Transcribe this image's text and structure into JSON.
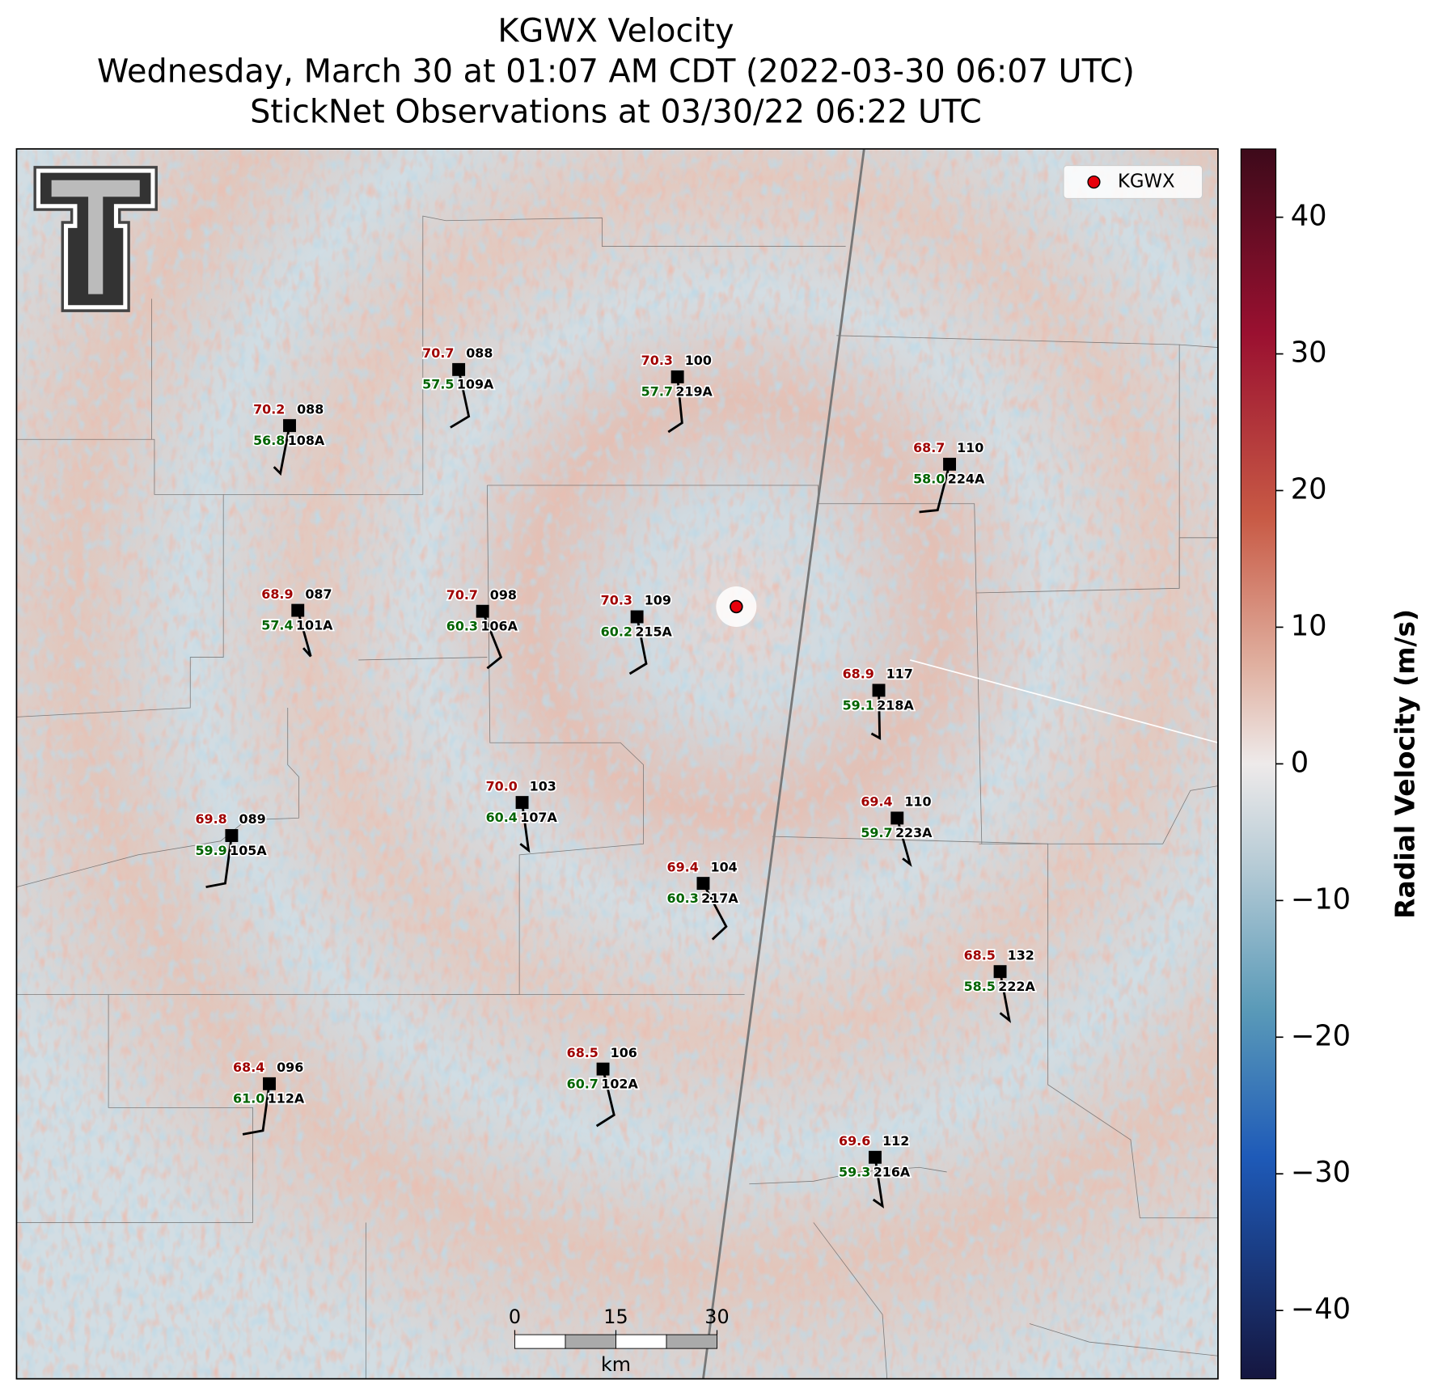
{
  "title": [
    "KGWX Velocity",
    "Wednesday, March 30 at 01:07 AM CDT (2022-03-30 06:07 UTC)",
    "StickNet Observations at 03/30/22 06:22 UTC"
  ],
  "legend": {
    "label": "KGWX",
    "color": "#e8000b"
  },
  "colorbar": {
    "label": "Radial Velocity (m/s)",
    "ylim": [
      -45,
      45
    ],
    "yticks": [
      40,
      30,
      20,
      10,
      0,
      {
        "value": -10,
        "label": "−10"
      },
      {
        "value": -20,
        "label": "−20"
      },
      {
        "value": -30,
        "label": "−30"
      },
      {
        "value": -40,
        "label": "−40"
      }
    ]
  },
  "scale_bar": {
    "xlim": [
      0,
      30
    ],
    "xticks": [
      0,
      15,
      30
    ],
    "unit": "km"
  },
  "stations": [
    {
      "temp": "70.2",
      "dew": "56.8",
      "code": "088",
      "id": "108A"
    },
    {
      "temp": "70.7",
      "dew": "57.5",
      "code": "088",
      "id": "109A"
    },
    {
      "temp": "70.3",
      "dew": "57.7",
      "code": "100",
      "id": "219A"
    },
    {
      "temp": "68.7",
      "dew": "58.0",
      "code": "110",
      "id": "224A"
    },
    {
      "temp": "68.9",
      "dew": "57.4",
      "code": "087",
      "id": "101A"
    },
    {
      "temp": "70.7",
      "dew": "60.3",
      "code": "098",
      "id": "106A"
    },
    {
      "temp": "70.3",
      "dew": "60.2",
      "code": "109",
      "id": "215A"
    },
    {
      "temp": "68.9",
      "dew": "59.1",
      "code": "117",
      "id": "218A"
    },
    {
      "temp": "70.0",
      "dew": "60.4",
      "code": "103",
      "id": "107A"
    },
    {
      "temp": "69.8",
      "dew": "59.9",
      "code": "089",
      "id": "105A"
    },
    {
      "temp": "69.4",
      "dew": "59.7",
      "code": "110",
      "id": "223A"
    },
    {
      "temp": "69.4",
      "dew": "60.3",
      "code": "104",
      "id": "217A"
    },
    {
      "temp": "68.5",
      "dew": "58.5",
      "code": "132",
      "id": "222A"
    },
    {
      "temp": "68.4",
      "dew": "61.0",
      "code": "096",
      "id": "112A"
    },
    {
      "temp": "68.5",
      "dew": "60.7",
      "code": "106",
      "id": "102A"
    },
    {
      "temp": "69.6",
      "dew": "59.3",
      "code": "112",
      "id": "216A"
    }
  ]
}
